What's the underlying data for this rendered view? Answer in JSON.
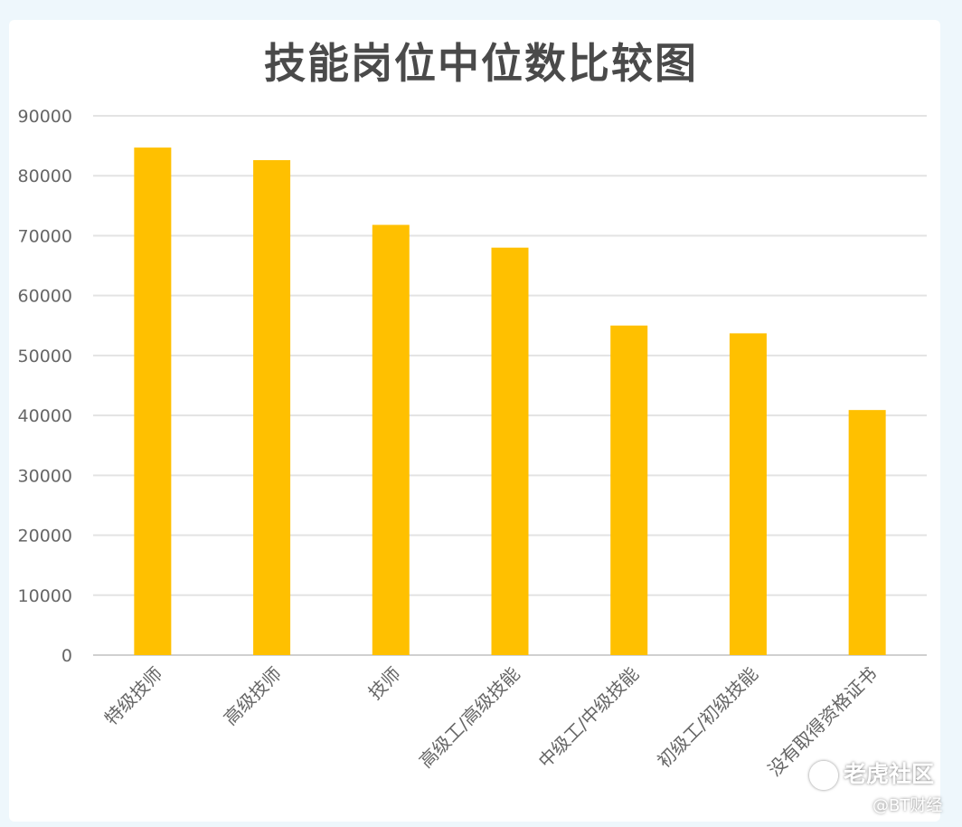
{
  "chart_data": {
    "type": "bar",
    "title": "技能岗位中位数比较图",
    "categories": [
      "特级技师",
      "高级技师",
      "技师",
      "高级工/高级技能",
      "中级工/中级技能",
      "初级工/初级技能",
      "没有取得资格证书"
    ],
    "values": [
      84700,
      82600,
      71800,
      68000,
      55000,
      53700,
      40900
    ],
    "ylim": [
      0,
      90000
    ],
    "yticks": [
      0,
      10000,
      20000,
      30000,
      40000,
      50000,
      60000,
      70000,
      80000,
      90000
    ],
    "grid": true,
    "bar_color": "#FFC000",
    "xlabel": "",
    "ylabel": ""
  },
  "watermark": {
    "brand": "老虎社区",
    "source": "@BT财经"
  }
}
